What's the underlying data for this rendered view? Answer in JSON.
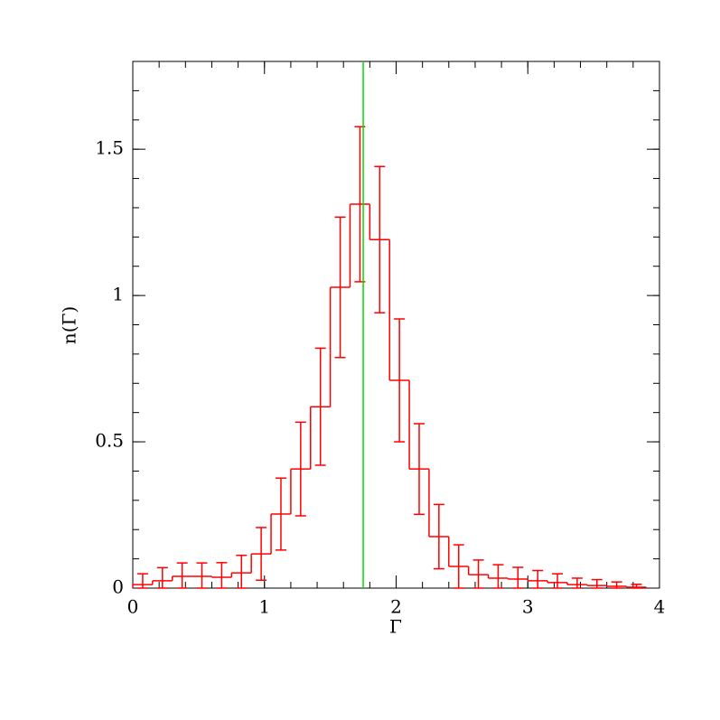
{
  "chart_data": {
    "type": "histogram",
    "x_label": "Γ",
    "y_label": "n(Γ)",
    "bins": [
      0,
      0.15,
      0.3,
      0.45,
      0.6,
      0.75,
      0.9,
      1.05,
      1.2,
      1.35,
      1.5,
      1.65,
      1.8,
      1.95,
      2.1,
      2.25,
      2.4,
      2.55,
      2.7,
      2.85,
      3.0,
      3.15,
      3.3,
      3.45,
      3.6,
      3.75,
      3.9
    ],
    "values": [
      0.012,
      0.025,
      0.04,
      0.04,
      0.037,
      0.052,
      0.117,
      0.253,
      0.407,
      0.62,
      1.028,
      1.312,
      1.191,
      0.71,
      0.407,
      0.176,
      0.074,
      0.046,
      0.034,
      0.031,
      0.025,
      0.019,
      0.012,
      0.009,
      0.006,
      0.003
    ],
    "errors": [
      0.037,
      0.045,
      0.046,
      0.046,
      0.05,
      0.06,
      0.09,
      0.123,
      0.16,
      0.2,
      0.24,
      0.265,
      0.25,
      0.21,
      0.155,
      0.11,
      0.074,
      0.05,
      0.046,
      0.04,
      0.035,
      0.03,
      0.022,
      0.02,
      0.015,
      0.01
    ],
    "color": "#ff0000",
    "vline": {
      "x": 1.75,
      "color": "#00dd00"
    },
    "xlim": [
      0,
      4
    ],
    "ylim": [
      0,
      1.8
    ],
    "xticks": [
      0,
      1,
      2,
      3,
      4
    ],
    "yticks": [
      0,
      0.5,
      1,
      1.5
    ],
    "minor_tick_step": {
      "x": 0.2,
      "y": 0.1
    }
  }
}
